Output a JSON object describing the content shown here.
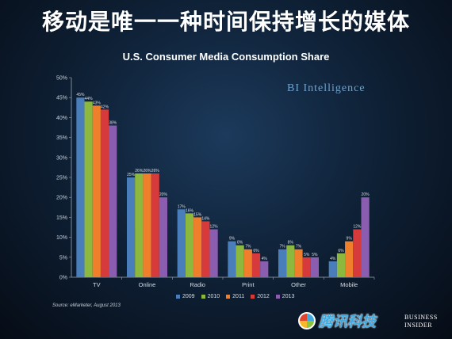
{
  "headline": "移动是唯一一种时间保持增长的媒体",
  "watermark_brand": "BI Intelligence",
  "source_note": "Source: eMarketer, August 2013",
  "logos": {
    "tencent": "腾讯科技",
    "business_insider_line1": "BUSINESS",
    "business_insider_line2": "INSIDER"
  },
  "chart_data": {
    "type": "bar",
    "title": "U.S. Consumer Media Consumption Share",
    "xlabel": "",
    "ylabel": "",
    "ylim": [
      0,
      50
    ],
    "yticks": [
      0,
      5,
      10,
      15,
      20,
      25,
      30,
      35,
      40,
      45,
      50
    ],
    "ytick_format": "%",
    "grid": false,
    "legend_placement": "bottom",
    "categories": [
      "TV",
      "Online",
      "Radio",
      "Print",
      "Other",
      "Mobile"
    ],
    "series": [
      {
        "name": "2009",
        "color": "#4a7ebb",
        "values": [
          45,
          25,
          17,
          9,
          7,
          4
        ]
      },
      {
        "name": "2010",
        "color": "#8cb83d",
        "values": [
          44,
          26,
          16,
          8,
          8,
          6
        ]
      },
      {
        "name": "2011",
        "color": "#ef7f2b",
        "values": [
          43,
          26,
          15,
          7,
          7,
          9
        ]
      },
      {
        "name": "2012",
        "color": "#d63a3a",
        "values": [
          42,
          26,
          14,
          6,
          5,
          12
        ]
      },
      {
        "name": "2013",
        "color": "#8b5db0",
        "values": [
          38,
          20,
          12,
          4,
          5,
          20
        ]
      }
    ]
  }
}
